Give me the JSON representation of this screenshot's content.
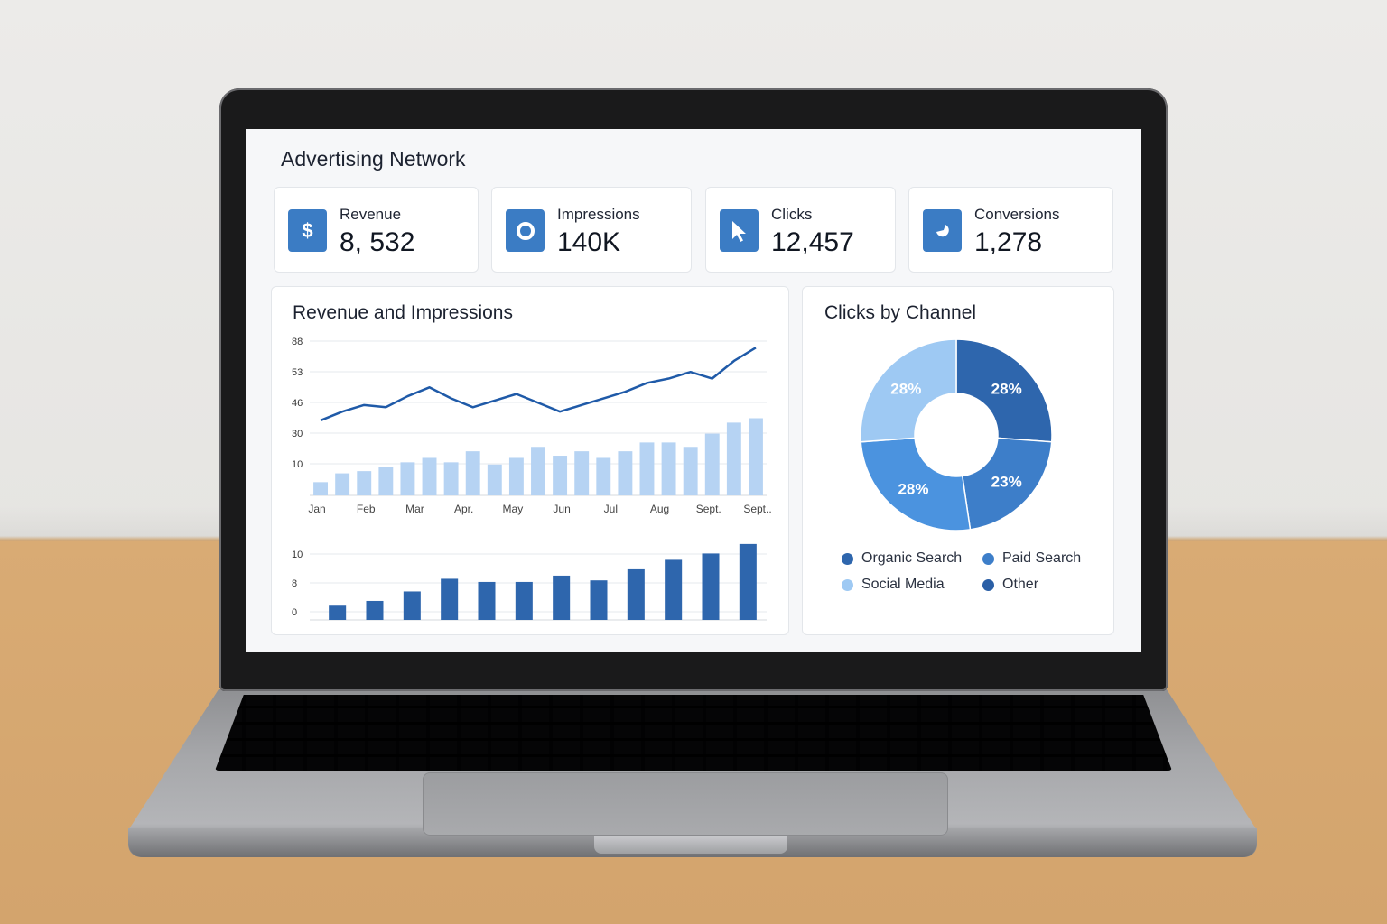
{
  "dashboard": {
    "title": "Advertising Network",
    "kpis": [
      {
        "label": "Revenue",
        "value": "8, 532",
        "icon": "dollar-icon",
        "glyph": "$"
      },
      {
        "label": "Impressions",
        "value": "140K",
        "icon": "eye-icon",
        "glyph": ""
      },
      {
        "label": "Clicks",
        "value": "12,457",
        "icon": "cursor-icon",
        "glyph": ""
      },
      {
        "label": "Conversions",
        "value": "1,278",
        "icon": "conversion-icon",
        "glyph": ""
      }
    ],
    "revenue_panel_title": "Revenue and Impressions",
    "channel_panel_title": "Clicks by Channel"
  },
  "colors": {
    "accent": "#3b7cc4",
    "light_bar": "#b6d3f3",
    "dark_bar": "#2e66ad",
    "line": "#1f5aa8"
  },
  "chart_data": [
    {
      "type": "bar",
      "title": "Revenue and Impressions",
      "y_ticks": [
        "10",
        "30",
        "46",
        "53",
        "88"
      ],
      "x_tick_labels": [
        "Jan",
        "Feb",
        "Mar",
        "Apr.",
        "May",
        "Jun",
        "Jul",
        "Aug",
        "Sept.",
        "Sept.."
      ],
      "bars": [
        6,
        10,
        11,
        13,
        15,
        17,
        15,
        20,
        14,
        17,
        22,
        18,
        20,
        17,
        20,
        24,
        24,
        22,
        28,
        33,
        35
      ],
      "line": [
        34,
        38,
        41,
        40,
        45,
        49,
        44,
        40,
        43,
        46,
        42,
        38,
        41,
        44,
        47,
        51,
        53,
        56,
        53,
        61,
        67
      ],
      "grid": true
    },
    {
      "type": "bar",
      "y_ticks": [
        "0",
        "8",
        "10"
      ],
      "values": [
        1.8,
        2.4,
        3.6,
        5.2,
        4.8,
        4.8,
        5.6,
        5.0,
        6.4,
        7.6,
        8.4,
        9.6
      ],
      "grid": true
    },
    {
      "type": "pie",
      "title": "Clicks by Channel",
      "slices": [
        {
          "label": "28%",
          "value": 28,
          "color": "#2e66ad"
        },
        {
          "label": "23%",
          "value": 23,
          "color": "#3d7ec9"
        },
        {
          "label": "28%",
          "value": 28,
          "color": "#4b93df"
        },
        {
          "label": "28%",
          "value": 28,
          "color": "#9ec9f3"
        }
      ],
      "legend": [
        {
          "name": "Organic Search",
          "color": "#2e66ad"
        },
        {
          "name": "Paid Search",
          "color": "#3d7ec9"
        },
        {
          "name": "Social Media",
          "color": "#9ec9f3"
        },
        {
          "name": "Other",
          "color": "#2a5fa6"
        }
      ],
      "legend_position": "bottom"
    }
  ]
}
